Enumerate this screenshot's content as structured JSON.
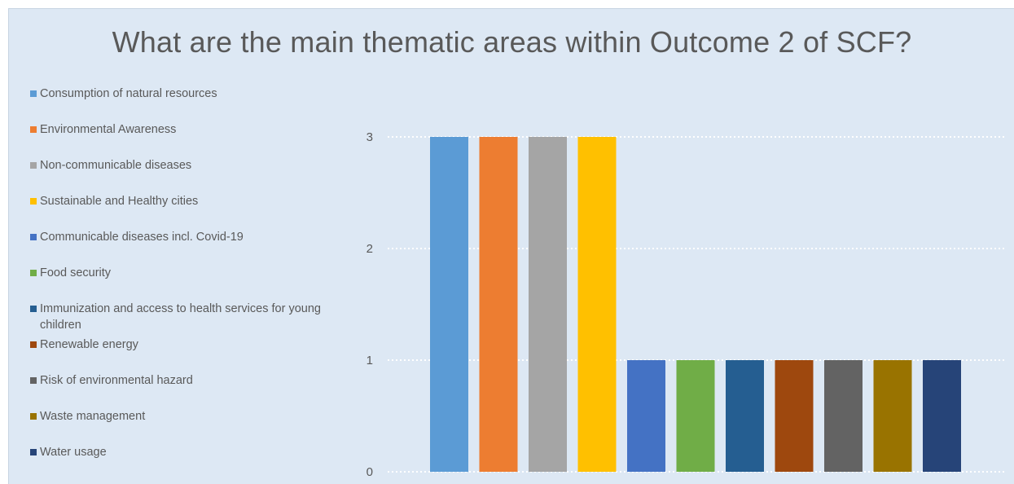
{
  "chart_data": {
    "type": "bar",
    "title": "What are the main thematic areas within Outcome 2 of SCF?",
    "xlabel": "",
    "ylabel": "",
    "ylim": [
      0,
      3
    ],
    "y_ticks": [
      "0",
      "1",
      "2",
      "3"
    ],
    "grid": true,
    "legend_position": "left",
    "series": [
      {
        "name": "Consumption of natural resources",
        "value": 3,
        "color": "#5b9bd5"
      },
      {
        "name": "Environmental Awareness",
        "value": 3,
        "color": "#ed7d31"
      },
      {
        "name": "Non-communicable diseases",
        "value": 3,
        "color": "#a5a5a5"
      },
      {
        "name": "Sustainable and Healthy cities",
        "value": 3,
        "color": "#ffc000"
      },
      {
        "name": "Communicable diseases incl. Covid-19",
        "value": 1,
        "color": "#4472c4"
      },
      {
        "name": "Food security",
        "value": 1,
        "color": "#70ad47"
      },
      {
        "name": "Immunization and access to health services for young children",
        "value": 1,
        "color": "#255e91"
      },
      {
        "name": "Renewable energy",
        "value": 1,
        "color": "#9e480e"
      },
      {
        "name": "Risk of environmental hazard",
        "value": 1,
        "color": "#636363"
      },
      {
        "name": "Waste management",
        "value": 1,
        "color": "#997300"
      },
      {
        "name": "Water usage",
        "value": 1,
        "color": "#264478"
      }
    ]
  }
}
